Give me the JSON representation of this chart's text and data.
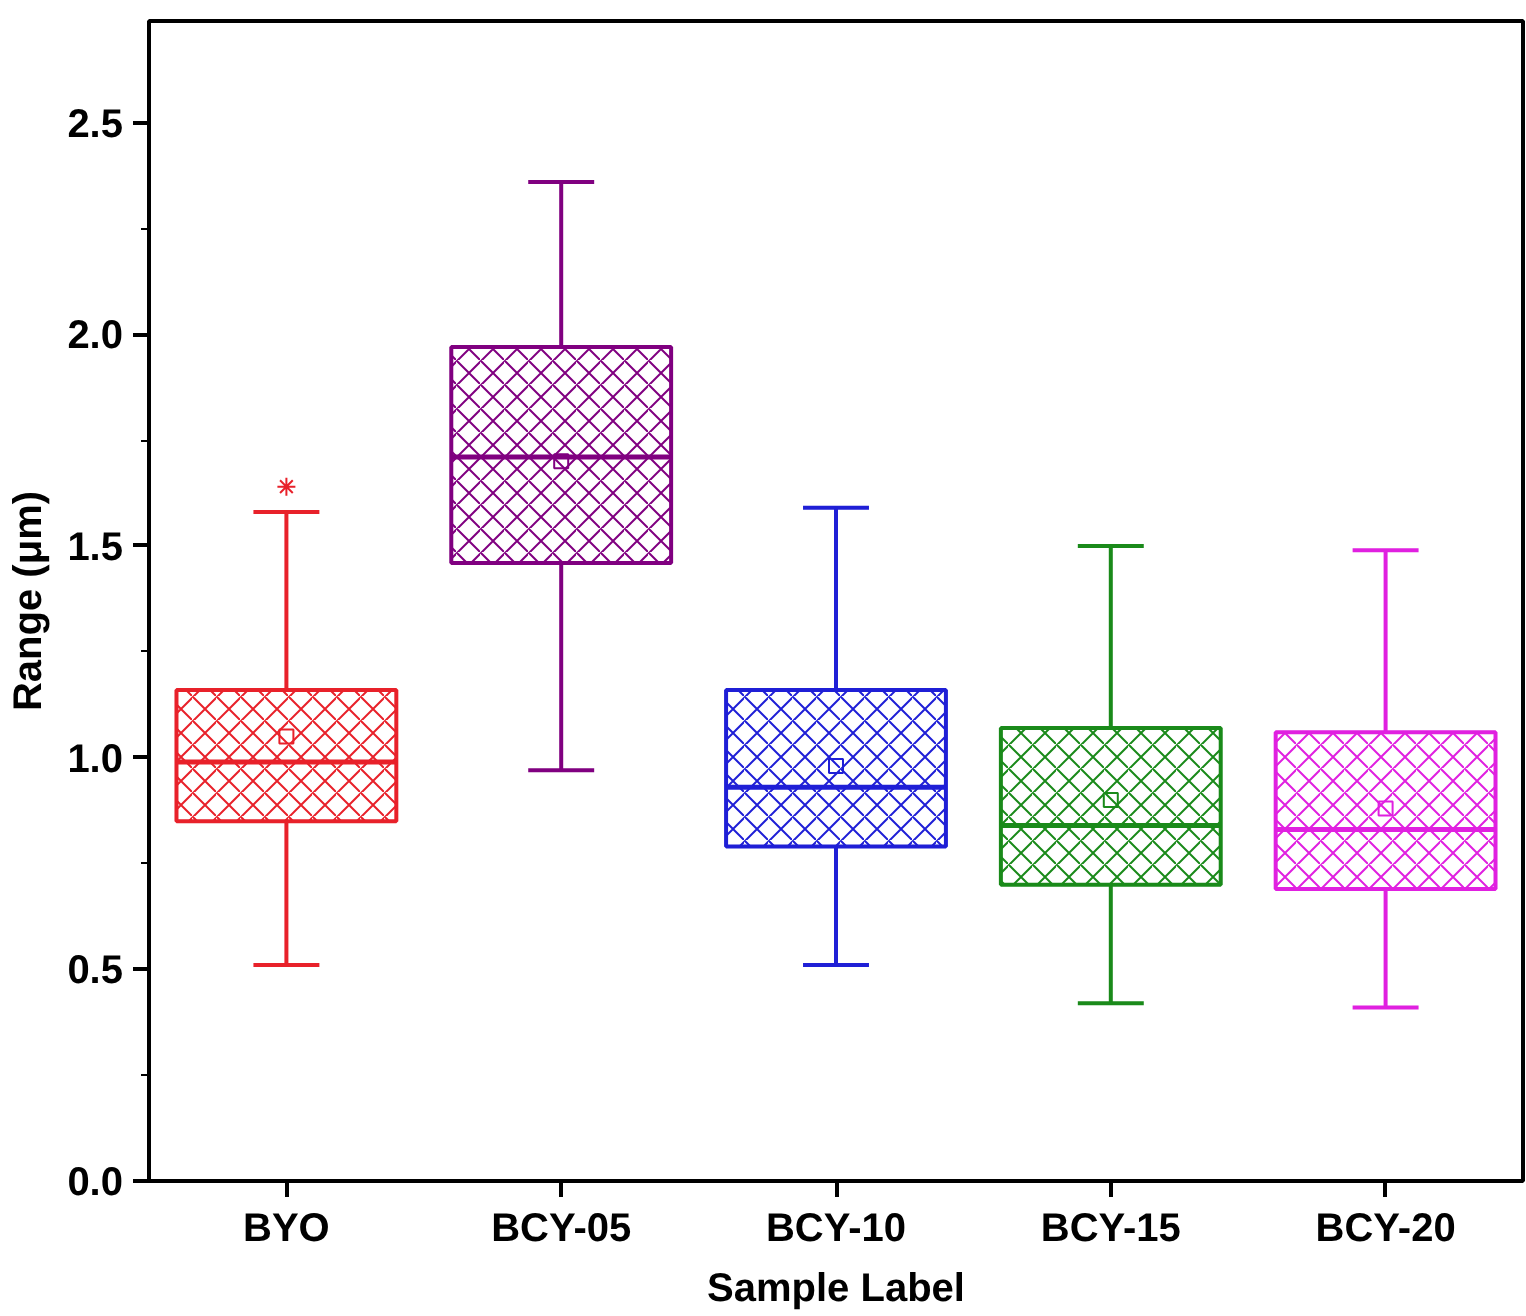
{
  "chart_data": {
    "type": "box",
    "xlabel": "Sample Label",
    "ylabel": "Range (μm)",
    "categories": [
      "BYO",
      "BCY-05",
      "BCY-10",
      "BCY-15",
      "BCY-20"
    ],
    "colors": [
      "#e8212a",
      "#800080",
      "#1f1fd6",
      "#1a8a1a",
      "#e020e0"
    ],
    "boxes": [
      {
        "low": 0.51,
        "q1": 0.85,
        "median": 0.99,
        "q3": 1.16,
        "high": 1.58,
        "mean": 1.05,
        "outliers": [
          1.64
        ]
      },
      {
        "low": 0.97,
        "q1": 1.46,
        "median": 1.71,
        "q3": 1.97,
        "high": 2.36,
        "mean": 1.7
      },
      {
        "low": 0.51,
        "q1": 0.79,
        "median": 0.93,
        "q3": 1.16,
        "high": 1.59,
        "mean": 0.98
      },
      {
        "low": 0.42,
        "q1": 0.7,
        "median": 0.84,
        "q3": 1.07,
        "high": 1.5,
        "mean": 0.9
      },
      {
        "low": 0.41,
        "q1": 0.69,
        "median": 0.83,
        "q3": 1.06,
        "high": 1.49,
        "mean": 0.88
      }
    ],
    "ylim": [
      0,
      2.74
    ],
    "yticks": [
      {
        "value": 0,
        "label": "0.0"
      },
      {
        "value": 0.5,
        "label": "0.5"
      },
      {
        "value": 1,
        "label": "1.0"
      },
      {
        "value": 1.5,
        "label": "1.5"
      },
      {
        "value": 2,
        "label": "2.0"
      },
      {
        "value": 2.5,
        "label": "2.5"
      }
    ],
    "grid": false
  }
}
